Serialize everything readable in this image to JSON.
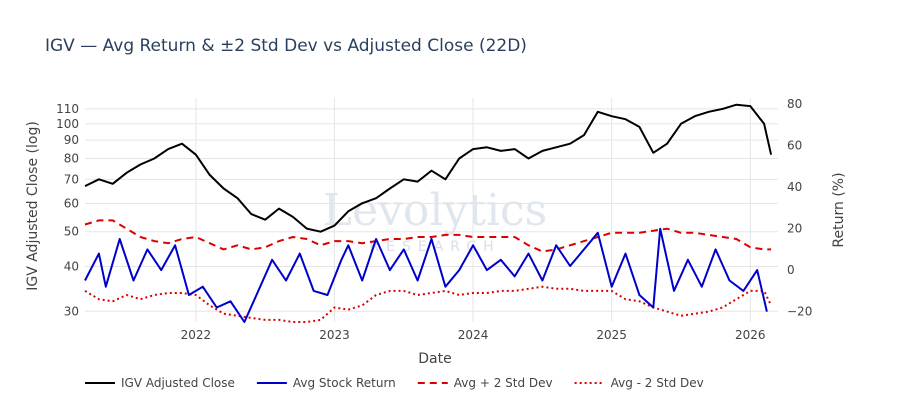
{
  "chart_data": {
    "type": "line",
    "title": "IGV — Avg Return & ±2 Std Dev vs Adjusted Close (22D)",
    "xlabel": "Date",
    "ylabel_left": "IGV Adjusted Close (log)",
    "ylabel_right": "Return (%)",
    "watermark": {
      "main": "Levolytics",
      "sub": "RESEARCH"
    },
    "x_ticks": [
      "2022",
      "2023",
      "2024",
      "2025",
      "2026"
    ],
    "x_tick_values": [
      2022.0,
      2023.0,
      2024.0,
      2025.0,
      2026.0
    ],
    "xlim": [
      2021.2,
      2026.2
    ],
    "y_left_ticks": [
      30,
      40,
      50,
      60,
      70,
      80,
      90,
      100,
      110
    ],
    "y_left_log_range": [
      28,
      118
    ],
    "y_right_ticks": [
      -20,
      0,
      20,
      40,
      60,
      80
    ],
    "y_right_range": [
      -25,
      83
    ],
    "legend": [
      "IGV Adjusted Close",
      "Avg Stock Return",
      "Avg + 2 Std Dev",
      "Avg - 2 Std Dev"
    ],
    "colors": {
      "close": "#000000",
      "avg": "#0000cc",
      "upper": "#dd0000",
      "lower": "#dd0000",
      "grid": "#e5e5e5"
    },
    "series": [
      {
        "name": "IGV Adjusted Close",
        "axis": "left",
        "x": [
          2021.2,
          2021.3,
          2021.4,
          2021.5,
          2021.6,
          2021.7,
          2021.8,
          2021.9,
          2022.0,
          2022.1,
          2022.2,
          2022.3,
          2022.4,
          2022.5,
          2022.6,
          2022.7,
          2022.8,
          2022.9,
          2023.0,
          2023.1,
          2023.2,
          2023.3,
          2023.4,
          2023.5,
          2023.6,
          2023.7,
          2023.8,
          2023.9,
          2024.0,
          2024.1,
          2024.2,
          2024.3,
          2024.4,
          2024.5,
          2024.6,
          2024.7,
          2024.8,
          2024.9,
          2025.0,
          2025.1,
          2025.2,
          2025.3,
          2025.4,
          2025.5,
          2025.6,
          2025.7,
          2025.8,
          2025.9,
          2026.0,
          2026.1,
          2026.15
        ],
        "values": [
          67,
          70,
          68,
          73,
          77,
          80,
          85,
          88,
          82,
          72,
          66,
          62,
          56,
          54,
          58,
          55,
          51,
          50,
          52,
          57,
          60,
          62,
          66,
          70,
          69,
          74,
          70,
          80,
          85,
          86,
          84,
          85,
          80,
          84,
          86,
          88,
          93,
          108,
          105,
          103,
          98,
          83,
          88,
          100,
          105,
          108,
          110,
          113,
          112,
          100,
          82
        ]
      },
      {
        "name": "Avg Stock Return",
        "axis": "right",
        "x": [
          2021.2,
          2021.3,
          2021.35,
          2021.45,
          2021.55,
          2021.65,
          2021.75,
          2021.85,
          2021.95,
          2022.05,
          2022.15,
          2022.25,
          2022.35,
          2022.45,
          2022.55,
          2022.65,
          2022.75,
          2022.85,
          2022.95,
          2023.05,
          2023.1,
          2023.2,
          2023.3,
          2023.4,
          2023.5,
          2023.6,
          2023.7,
          2023.8,
          2023.9,
          2024.0,
          2024.1,
          2024.2,
          2024.3,
          2024.4,
          2024.5,
          2024.6,
          2024.7,
          2024.8,
          2024.9,
          2025.0,
          2025.1,
          2025.2,
          2025.3,
          2025.35,
          2025.45,
          2025.55,
          2025.65,
          2025.75,
          2025.85,
          2025.95,
          2026.05,
          2026.12
        ],
        "values": [
          -5,
          8,
          -8,
          15,
          -5,
          10,
          0,
          12,
          -12,
          -8,
          -18,
          -15,
          -25,
          -10,
          5,
          -5,
          8,
          -10,
          -12,
          5,
          12,
          -5,
          15,
          0,
          10,
          -5,
          15,
          -8,
          0,
          12,
          0,
          5,
          -3,
          8,
          -5,
          12,
          2,
          10,
          18,
          -8,
          8,
          -12,
          -18,
          20,
          -10,
          5,
          -8,
          10,
          -5,
          -10,
          0,
          -20
        ]
      },
      {
        "name": "Avg + 2 Std Dev",
        "axis": "right",
        "x": [
          2021.2,
          2021.3,
          2021.4,
          2021.5,
          2021.6,
          2021.7,
          2021.8,
          2021.9,
          2022.0,
          2022.1,
          2022.2,
          2022.3,
          2022.4,
          2022.5,
          2022.6,
          2022.7,
          2022.8,
          2022.9,
          2023.0,
          2023.1,
          2023.2,
          2023.3,
          2023.4,
          2023.5,
          2023.6,
          2023.7,
          2023.8,
          2023.9,
          2024.0,
          2024.1,
          2024.2,
          2024.3,
          2024.4,
          2024.5,
          2024.6,
          2024.7,
          2024.8,
          2024.9,
          2025.0,
          2025.1,
          2025.2,
          2025.3,
          2025.4,
          2025.5,
          2025.6,
          2025.7,
          2025.8,
          2025.9,
          2026.0,
          2026.1,
          2026.15
        ],
        "values": [
          22,
          24,
          24,
          20,
          16,
          14,
          13,
          15,
          16,
          13,
          10,
          12,
          10,
          11,
          14,
          16,
          15,
          12,
          14,
          14,
          13,
          14,
          15,
          15,
          16,
          16,
          17,
          17,
          16,
          16,
          16,
          16,
          12,
          9,
          10,
          12,
          14,
          16,
          18,
          18,
          18,
          19,
          20,
          18,
          18,
          17,
          16,
          15,
          11,
          10,
          10
        ]
      },
      {
        "name": "Avg - 2 Std Dev",
        "axis": "right",
        "x": [
          2021.2,
          2021.3,
          2021.4,
          2021.5,
          2021.6,
          2021.7,
          2021.8,
          2021.9,
          2022.0,
          2022.1,
          2022.2,
          2022.3,
          2022.4,
          2022.5,
          2022.6,
          2022.7,
          2022.8,
          2022.9,
          2023.0,
          2023.1,
          2023.2,
          2023.3,
          2023.4,
          2023.5,
          2023.6,
          2023.7,
          2023.8,
          2023.9,
          2024.0,
          2024.1,
          2024.2,
          2024.3,
          2024.4,
          2024.5,
          2024.6,
          2024.7,
          2024.8,
          2024.9,
          2025.0,
          2025.1,
          2025.2,
          2025.3,
          2025.4,
          2025.5,
          2025.6,
          2025.7,
          2025.8,
          2025.9,
          2026.0,
          2026.1,
          2026.15
        ],
        "values": [
          -10,
          -14,
          -15,
          -12,
          -14,
          -12,
          -11,
          -11,
          -12,
          -17,
          -21,
          -22,
          -23,
          -24,
          -24,
          -25,
          -25,
          -24,
          -18,
          -19,
          -17,
          -12,
          -10,
          -10,
          -12,
          -11,
          -10,
          -12,
          -11,
          -11,
          -10,
          -10,
          -9,
          -8,
          -9,
          -9,
          -10,
          -10,
          -10,
          -14,
          -15,
          -18,
          -20,
          -22,
          -21,
          -20,
          -18,
          -14,
          -10,
          -10,
          -17
        ]
      }
    ]
  }
}
